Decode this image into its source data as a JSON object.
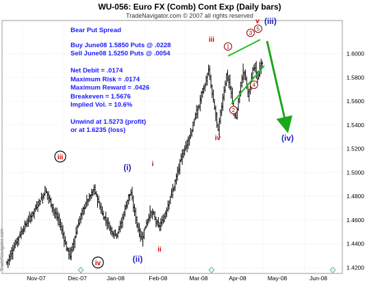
{
  "chart_data": {
    "type": "ohlc",
    "title": "WU-056:  Euro FX (Comb) Cont Exp  (Daily bars)",
    "subtitle": "TradeNavigator.com © 2007 all rights reserved",
    "watermark": "TradeNavigator.com",
    "ylim": [
      1.415,
      1.628
    ],
    "y_ticks": [
      "1.6000",
      "1.5800",
      "1.5600",
      "1.5400",
      "1.5200",
      "1.5000",
      "1.4800",
      "1.4600",
      "1.4400",
      "1.4200"
    ],
    "y_tick_values": [
      1.6,
      1.58,
      1.56,
      1.54,
      1.52,
      1.5,
      1.48,
      1.46,
      1.44,
      1.42
    ],
    "x_ticks": [
      "Nov-07",
      "Dec-07",
      "Jan-08",
      "Feb-08",
      "Mar-08",
      "Apr-08",
      "May-08",
      "Jun-08"
    ],
    "grid": true,
    "annotation_text": [
      "Bear Put Spread",
      "Buy June08 1.5850 Puts @ .0228",
      "Sell June08 1.5250 Puts @ .0054",
      "Net Debit = .0174",
      "Maximum Risk =  .0174",
      "Maximum Reward = .0426",
      "Breakeven = 1.5676",
      "Implied Vol. = 10.6%",
      "Unwind at 1.5273 (profit)",
      "or at 1.6235 (loss)"
    ],
    "wave_labels": [
      {
        "text": "iii",
        "style": "circle-red",
        "price": 1.4975
      },
      {
        "text": "iv",
        "style": "circle-red",
        "price": 1.4225
      },
      {
        "text": "(i)",
        "style": "blue",
        "price": 1.4985
      },
      {
        "text": "(ii)",
        "style": "blue",
        "price": 1.431
      },
      {
        "text": "i",
        "style": "red",
        "price": 1.5
      },
      {
        "text": "ii",
        "style": "red",
        "price": 1.436
      },
      {
        "text": "iii",
        "style": "red",
        "price": 1.596
      },
      {
        "text": "iv",
        "style": "red",
        "price": 1.518
      },
      {
        "text": "v",
        "style": "red",
        "price": 1.609
      },
      {
        "text": "(iii)",
        "style": "blue",
        "price": 1.608
      },
      {
        "text": "(iv)",
        "style": "blue",
        "price": 1.518
      }
    ],
    "triangle_points": [
      {
        "text": "1",
        "price": 1.589
      },
      {
        "text": "2",
        "price": 1.54
      },
      {
        "text": "3",
        "price": 1.6
      },
      {
        "text": "4",
        "price": 1.5625
      },
      {
        "text": "5",
        "price": 1.6045
      }
    ],
    "colors": {
      "bars": "#000000",
      "text_blue": "#1a1aff",
      "wave_red": "#cc0000",
      "wave_blue": "#2020c0",
      "trendlines": "#22bb22",
      "arrow": "#1aa81a",
      "grid": "#d8d8d8"
    }
  }
}
